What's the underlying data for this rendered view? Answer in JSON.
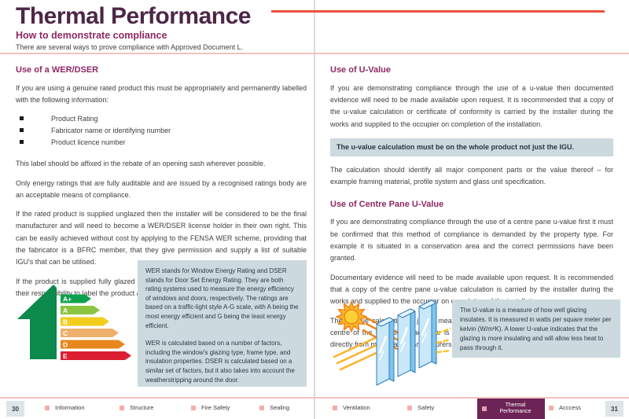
{
  "header": {
    "title": "Thermal Performance",
    "subtitle": "How to demonstrate compliance",
    "intro": "There are several ways to prove compliance with Approved Document L."
  },
  "left_column": {
    "heading": "Use of a WER/DSER",
    "para1": "If you are using a genuine rated product this must be appropriately and permanently labelled with the following information:",
    "bullets": [
      "Product Rating",
      "Fabricator name or identifying number",
      "Product licence number"
    ],
    "para2": "This label should be affixed in the rebate of an opening sash wherever possible.",
    "para3": "Only energy ratings that are fully auditable and are issued by a recognised ratings body are an acceptable means of compliance.",
    "para4": "If the rated product is supplied unglazed then the installer will be considered to be the final manufacturer and will need to become a WER/DSER license holder in their own right. This can be easily achieved without cost by applying to the FENSA WER scheme, providing that the fabricator is a BFRC member, that they give permission and supply a list of suitable IGU's that can be utilised.",
    "para5": "If the product is supplied fully glazed by a WER/DSER licence holding fabricator then it is their responsibility to label the product appropriately.",
    "info_box_para1": "WER stands for Window Energy Rating and DSER stands for Door Set Energy Rating. They are both rating systems used to measure the energy efficiency of windows and doors, respectively. The ratings are based on a traffic-light style A-G scale, with A being the most energy efficient and G being the least energy efficient.",
    "info_box_para2": "WER is calculated based on a number of factors, including the window's glazing type, frame type, and insulation properties. DSER is calculated based on a similar set of factors, but it also takes into account the weatherstripping around the door.",
    "energy_label": {
      "house_color": "#0b8a4b",
      "ratings": [
        {
          "label": "A+",
          "color": "#0ca14e",
          "tip": 94
        },
        {
          "label": "A",
          "color": "#8bc43f",
          "tip": 105
        },
        {
          "label": "B",
          "color": "#f2cd1c",
          "tip": 117
        },
        {
          "label": "C",
          "color": "#eeb06a",
          "tip": 129
        },
        {
          "label": "D",
          "color": "#e8871d",
          "tip": 137
        },
        {
          "label": "E",
          "color": "#dc1e32",
          "tip": 145
        }
      ]
    }
  },
  "right_column": {
    "heading1": "Use of U-Value",
    "para1": "If you are demonstrating compliance through the use of a u-value then documented evidence will need to be made available upon request. It is recommended that a copy of the u-value calculation or certificate of conformity is carried by the installer during the works and supplied to the occupier on completion of the installation.",
    "highlight": "The u-value calculation must be on the whole product not just the IGU.",
    "para2": "The calculation should identify all major component parts or the value thereof – for example framing material, profile system and glass unit specification.",
    "heading2": "Use of Centre Pane U-Value",
    "para3": "If you are demonstrating compliance through the use of a centre pane u-value first it must be confirmed that this method of compliance is demanded by the property type. For example it is situated in a conservation area and the correct permissions have been granted.",
    "para4": "Documentary evidence will need to be made available upon request. It is recommended that a copy of the centre pane u-value calculation is carried by the installer during the works and supplied to the occupier on completion of the installation.",
    "para5": "The u-value calculation is just a measurement of the thermal performance through the centre of the IGU, the spacer bar is not included. These calculations can be obtained directly from most glass manufacturers via their websites.",
    "info_box": "The U-value is a measure of how well glazing insulates. It is measured in watts per square meter per kelvin (W/m²K). A lower U-value indicates that the glazing is more insulating and will allow less heat to pass through it."
  },
  "footer": {
    "page_left": "30",
    "page_right": "31",
    "items": [
      {
        "label": "Information",
        "active": false
      },
      {
        "label": "Structure",
        "active": false
      },
      {
        "label": "Fire Safety",
        "active": false
      },
      {
        "label": "Sealing",
        "active": false
      },
      {
        "label": "Ventilation",
        "active": false
      },
      {
        "label": "Safety",
        "active": false
      },
      {
        "label": "Thermal Performance",
        "active": true
      },
      {
        "label": "Acccess",
        "active": false
      }
    ]
  },
  "colors": {
    "title_purple": "#4d2747",
    "heading_magenta": "#8e2963",
    "accent_red": "#e8523c",
    "thin_pink_rule": "#f4c2be",
    "info_box_bg": "#ccdadf",
    "footer_active_bg": "#6c2456",
    "footer_square": "#f2aea6"
  }
}
